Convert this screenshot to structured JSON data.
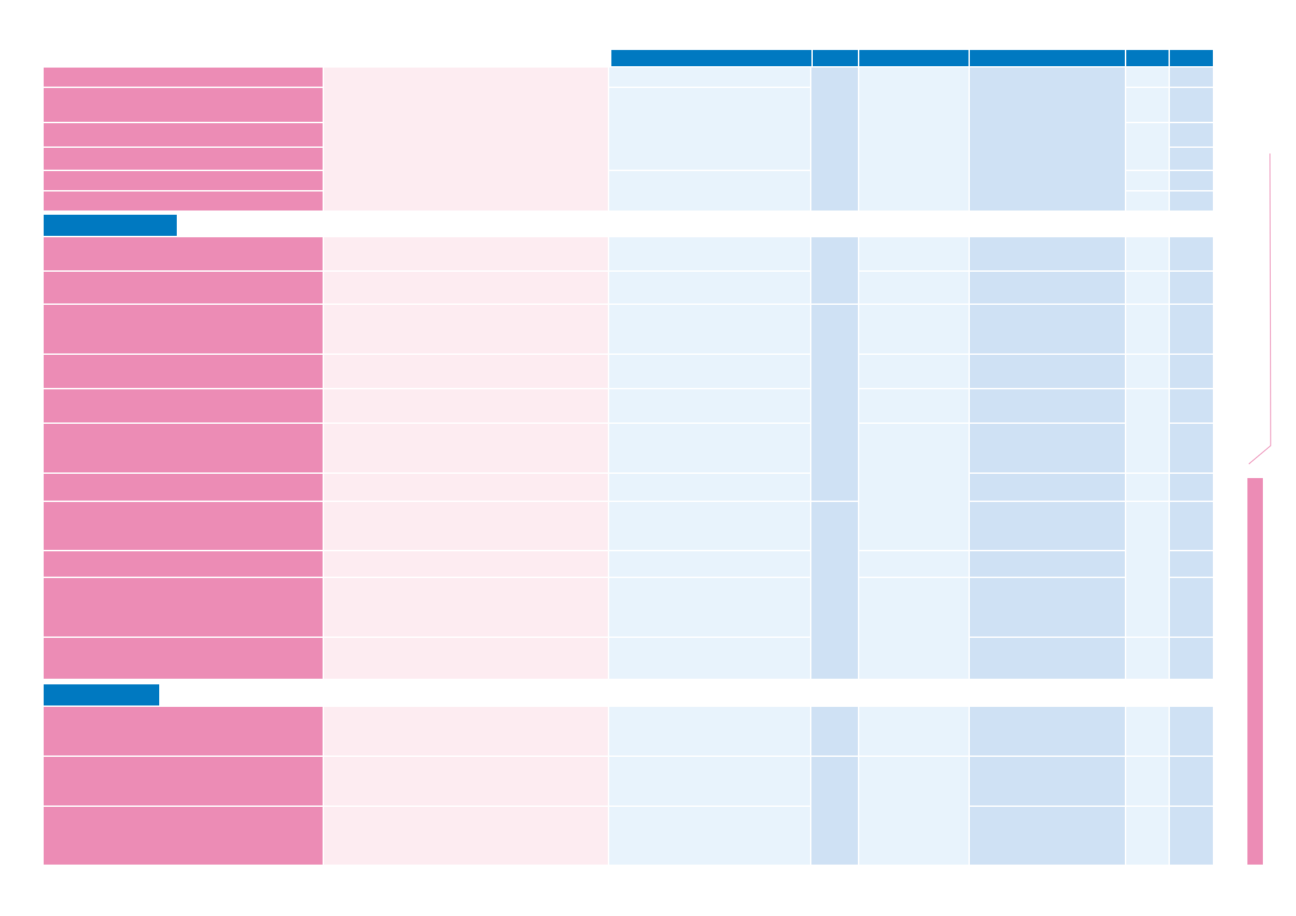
{
  "document": {
    "header_columns": [
      {
        "id": "col-3",
        "label": ""
      },
      {
        "id": "col-4",
        "label": ""
      },
      {
        "id": "col-5",
        "label": ""
      },
      {
        "id": "col-6",
        "label": ""
      },
      {
        "id": "col-7",
        "label": ""
      },
      {
        "id": "col-8",
        "label": ""
      }
    ],
    "sections": [
      {
        "id": "section-1",
        "title": ""
      },
      {
        "id": "section-2",
        "title": ""
      },
      {
        "id": "section-3",
        "title": ""
      }
    ],
    "side_label": "",
    "colors": {
      "header_blue": "#0079c1",
      "row_pink": "#ec8cb5",
      "light_pink": "#fdecf1",
      "light_blue": "#e8f3fc",
      "mid_blue": "#cfe1f4"
    }
  }
}
